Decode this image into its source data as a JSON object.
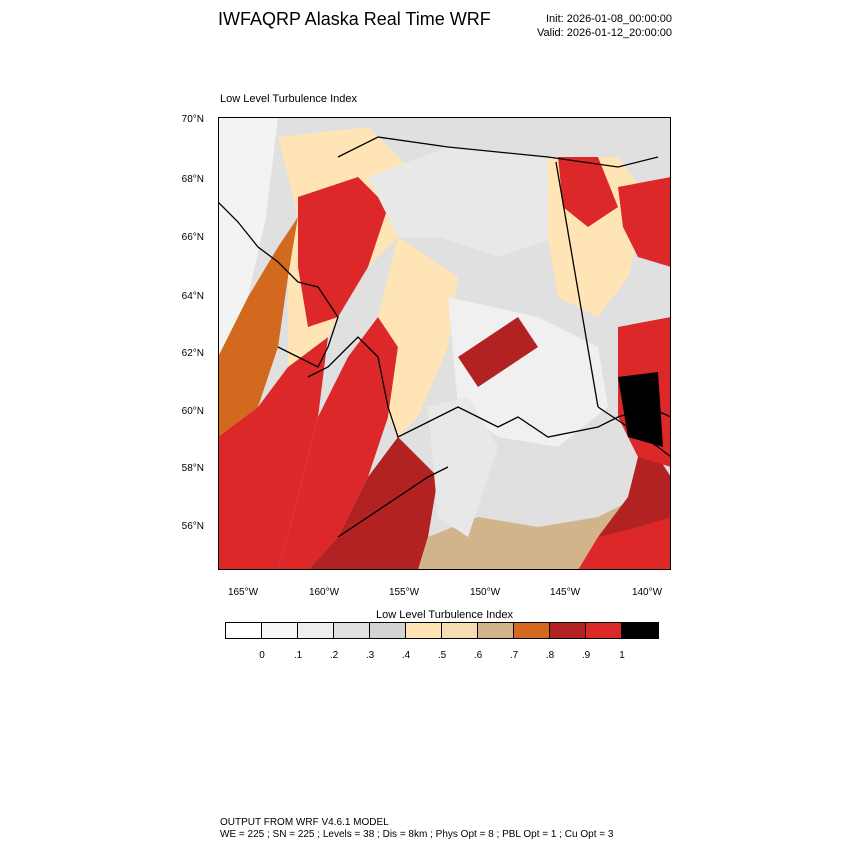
{
  "header": {
    "title": "IWFAQRP Alaska Real Time WRF",
    "init": "Init: 2026-01-08_00:00:00",
    "valid": "Valid: 2026-01-12_20:00:00"
  },
  "plot": {
    "title": "Low Level Turbulence Index",
    "lat_labels": [
      "70°N",
      "68°N",
      "66°N",
      "64°N",
      "62°N",
      "60°N",
      "58°N",
      "56°N"
    ],
    "lon_labels": [
      "165°W",
      "160°W",
      "155°W",
      "150°W",
      "145°W",
      "140°W"
    ]
  },
  "colorbar": {
    "title": "Low Level Turbulence Index",
    "labels": [
      "0",
      ".1",
      ".2",
      ".3",
      ".4",
      ".5",
      ".6",
      ".7",
      ".8",
      ".9",
      "1"
    ],
    "colors": [
      "#ffffff",
      "#f7f7f7",
      "#eeeeee",
      "#e0e0e0",
      "#d3d3d3",
      "#ffe4b5",
      "#f5deb3",
      "#d2b48c",
      "#d2691e",
      "#b22222",
      "#dc2828",
      "#000000"
    ]
  },
  "footer": {
    "line1": "OUTPUT FROM WRF V4.6.1 MODEL",
    "line2": "WE = 225 ; SN = 225 ; Levels = 38 ; Dis = 8km ; Phys Opt = 8 ; PBL Opt = 1 ; Cu Opt = 3"
  }
}
